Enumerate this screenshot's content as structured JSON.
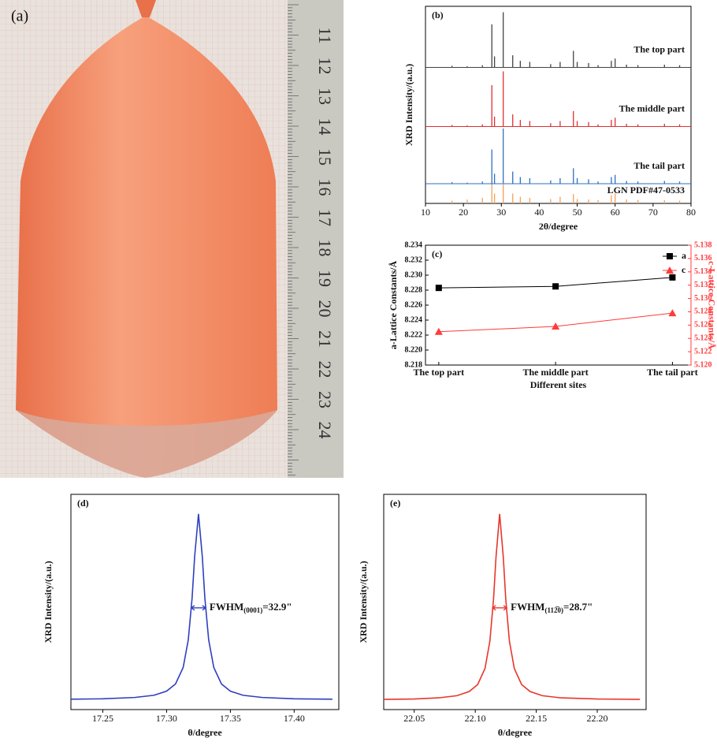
{
  "photo": {
    "label": "(a)",
    "ruler_labels": [
      "11",
      "12",
      "13",
      "14",
      "15",
      "16",
      "17",
      "18",
      "19",
      "20",
      "21",
      "22",
      "23",
      "24"
    ]
  },
  "chart_data": [
    {
      "type": "spectrum",
      "panel_label": "(b)",
      "xlabel": "2θ/degree",
      "ylabel": "XRD Intensity/(a.u.)",
      "xlim": [
        10,
        80
      ],
      "xticks": [
        10,
        20,
        30,
        40,
        50,
        60,
        70,
        80
      ],
      "x": [
        17,
        21,
        25,
        27.5,
        28.2,
        30.5,
        33,
        35,
        37.5,
        43,
        45.5,
        49,
        50,
        53,
        55.5,
        59,
        60,
        63,
        66,
        73,
        77
      ],
      "series": [
        {
          "name": "The top part",
          "color": "#444444",
          "values": [
            3,
            2,
            4,
            78,
            20,
            100,
            22,
            12,
            10,
            6,
            10,
            30,
            10,
            8,
            4,
            12,
            16,
            5,
            4,
            5,
            4
          ]
        },
        {
          "name": "The middle part",
          "color": "#e03030",
          "values": [
            3,
            2,
            4,
            75,
            18,
            100,
            22,
            12,
            10,
            6,
            10,
            28,
            10,
            8,
            4,
            12,
            16,
            5,
            4,
            5,
            4
          ]
        },
        {
          "name": "The tail part",
          "color": "#2f6fc0",
          "values": [
            3,
            2,
            4,
            62,
            18,
            100,
            22,
            12,
            10,
            6,
            10,
            28,
            10,
            8,
            4,
            12,
            16,
            5,
            4,
            5,
            4
          ]
        },
        {
          "name": "LGN PDF#47-0533",
          "color": "#f5a05a",
          "values": [
            5,
            7,
            10,
            35,
            18,
            36,
            18,
            12,
            10,
            8,
            12,
            17,
            8,
            7,
            6,
            15,
            18,
            7,
            6,
            6,
            5
          ]
        }
      ]
    },
    {
      "type": "line",
      "panel_label": "(c)",
      "xlabel": "Different sites",
      "ylabel": "a-Lattice Constants/Å",
      "y2label": "c-Lattice Constants/Å",
      "categories": [
        "The top part",
        "The middle part",
        "The tail part"
      ],
      "ylim": [
        8.218,
        8.234
      ],
      "yticks": [
        8.218,
        {
          "value": 8.22,
          "label": "8.220"
        },
        8.222,
        8.224,
        8.226,
        8.228,
        {
          "value": 8.23,
          "label": "8.230"
        },
        8.232,
        8.234
      ],
      "y2lim": [
        5.12,
        5.138
      ],
      "y2ticks": [
        {
          "value": 5.12,
          "label": "5.120"
        },
        5.122,
        5.124,
        5.126,
        5.128,
        {
          "value": 5.13,
          "label": "5.130"
        },
        5.132,
        5.134,
        5.136,
        5.138
      ],
      "legend": "top-right",
      "series": [
        {
          "name": "a",
          "color": "#000000",
          "marker": "square",
          "values": [
            8.2283,
            8.2285,
            8.2297
          ]
        },
        {
          "name": "c",
          "color": "#ff3b3b",
          "marker": "triangle",
          "axis": "y2",
          "values": [
            5.125,
            5.1258,
            5.1278
          ]
        }
      ]
    },
    {
      "type": "line",
      "panel_label": "(d)",
      "xlabel": "θ/degree",
      "ylabel": "XRD Intensity/(a.u.)",
      "color": "#2f3fbf",
      "xlim": [
        17.225,
        17.435
      ],
      "ylim": [
        0,
        110
      ],
      "xticks": [
        17.25,
        {
          "value": 17.3,
          "label": "17.30"
        },
        17.35,
        {
          "value": 17.4,
          "label": "17.40"
        }
      ],
      "x": [
        17.225,
        17.25,
        17.275,
        17.29,
        17.3,
        17.307,
        17.313,
        17.317,
        17.32,
        17.322,
        17.325,
        17.328,
        17.33,
        17.333,
        17.337,
        17.343,
        17.35,
        17.36,
        17.375,
        17.4,
        17.43
      ],
      "values": [
        5.3,
        5.5,
        6.2,
        7.3,
        9.4,
        13.1,
        21.5,
        35.6,
        57.0,
        78.2,
        100,
        78.2,
        57.0,
        35.6,
        21.5,
        13.1,
        9.4,
        7.3,
        6.2,
        5.5,
        5.3
      ],
      "annotation": {
        "text": "FWHM",
        "subscript": "(0001)",
        "value": "=32.9\""
      }
    },
    {
      "type": "line",
      "panel_label": "(e)",
      "xlabel": "θ/degree",
      "ylabel": "XRD Intensity/(a.u.)",
      "color": "#e8362a",
      "xlim": [
        22.025,
        22.24
      ],
      "ylim": [
        0,
        110
      ],
      "xticks": [
        22.05,
        {
          "value": 22.1,
          "label": "22.10"
        },
        22.15,
        {
          "value": 22.2,
          "label": "22.20"
        }
      ],
      "x": [
        22.025,
        22.05,
        22.07,
        22.085,
        22.095,
        22.102,
        22.108,
        22.112,
        22.115,
        22.117,
        22.12,
        22.123,
        22.125,
        22.128,
        22.132,
        22.138,
        22.145,
        22.155,
        22.17,
        22.2,
        22.235
      ],
      "values": [
        5.2,
        5.4,
        6.0,
        7.1,
        9.2,
        12.8,
        21.0,
        35.0,
        56.5,
        77.8,
        100,
        77.8,
        56.5,
        35.0,
        21.0,
        12.8,
        9.2,
        7.1,
        6.0,
        5.4,
        5.2
      ],
      "annotation": {
        "text": "FWHM",
        "subscript": "(112̅0)",
        "value": "=28.7\""
      }
    }
  ]
}
